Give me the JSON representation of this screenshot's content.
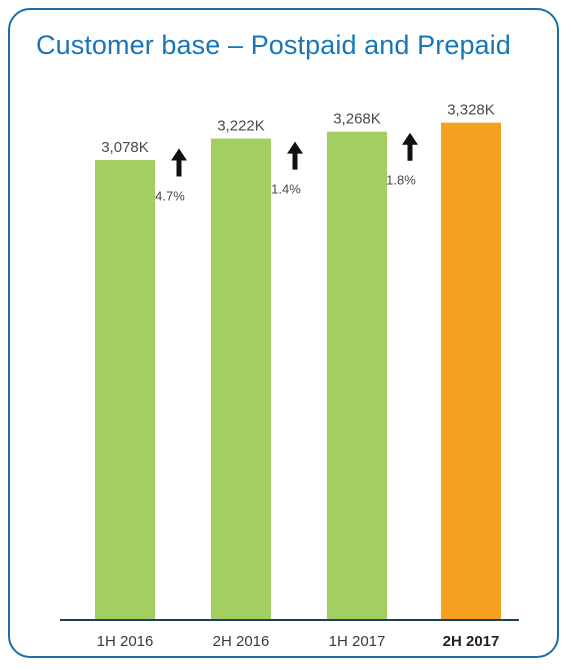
{
  "title": "Customer base – Postpaid and Prepaid",
  "colors": {
    "border": "#1b6ea8",
    "title": "#1876b8",
    "bar": "#a3cf62",
    "bar_highlight": "#f5a01f",
    "axis": "#1f3d5c",
    "arrow": "#111111"
  },
  "chart_data": {
    "type": "bar",
    "categories": [
      "1H 2016",
      "2H 2016",
      "1H 2017",
      "2H 2017"
    ],
    "values": [
      3078,
      3222,
      3268,
      3328
    ],
    "value_labels": [
      "3,078K",
      "3,222K",
      "3,268K",
      "3,328K"
    ],
    "highlight_index": 3,
    "growth": [
      {
        "label": "4.7%",
        "direction": "up"
      },
      {
        "label": "1.4%",
        "direction": "up"
      },
      {
        "label": "1.8%",
        "direction": "up"
      }
    ],
    "units": "K customers",
    "ylim": [
      0,
      3500
    ],
    "grid": false,
    "legend": "none"
  }
}
